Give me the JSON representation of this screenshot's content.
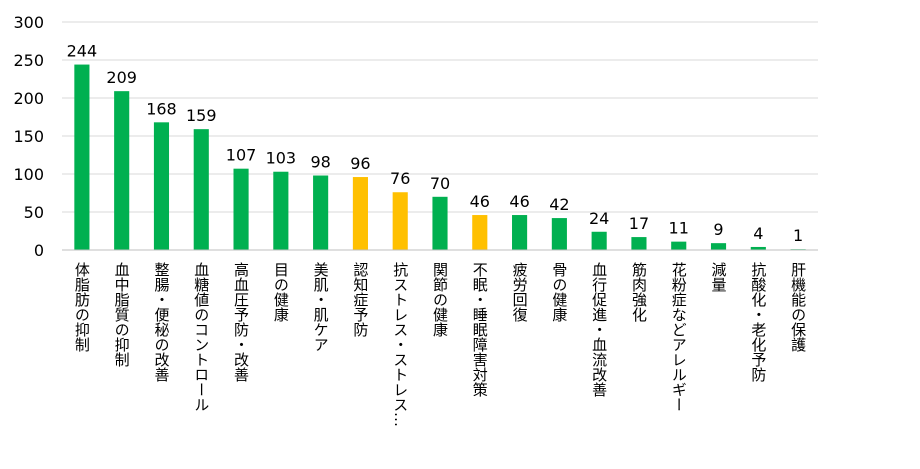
{
  "chart_data": {
    "type": "bar",
    "categories": [
      "体脂肪の抑制",
      "血中脂質の抑制",
      "整腸・便秘の改善",
      "血糖値のコントロール",
      "高血圧予防・改善",
      "目の健康",
      "美肌・肌ケア",
      "認知症予防",
      "抗ストレス・ストレス…",
      "関節の健康",
      "不眠・睡眠障害対策",
      "疲労回復",
      "骨の健康",
      "血行促進・血流改善",
      "筋肉強化",
      "花粉症などアレルギー",
      "減量",
      "抗酸化・老化予防",
      "肝機能の保護"
    ],
    "values": [
      244,
      209,
      168,
      159,
      107,
      103,
      98,
      96,
      76,
      70,
      46,
      46,
      42,
      24,
      17,
      11,
      9,
      4,
      1
    ],
    "colors": [
      "#00b050",
      "#00b050",
      "#00b050",
      "#00b050",
      "#00b050",
      "#00b050",
      "#00b050",
      "#ffc000",
      "#ffc000",
      "#00b050",
      "#ffc000",
      "#00b050",
      "#00b050",
      "#00b050",
      "#00b050",
      "#00b050",
      "#00b050",
      "#00b050",
      "#00b050"
    ],
    "ylim": [
      0,
      300
    ],
    "yticks": [
      0,
      50,
      100,
      150,
      200,
      250,
      300
    ],
    "grid": true
  }
}
